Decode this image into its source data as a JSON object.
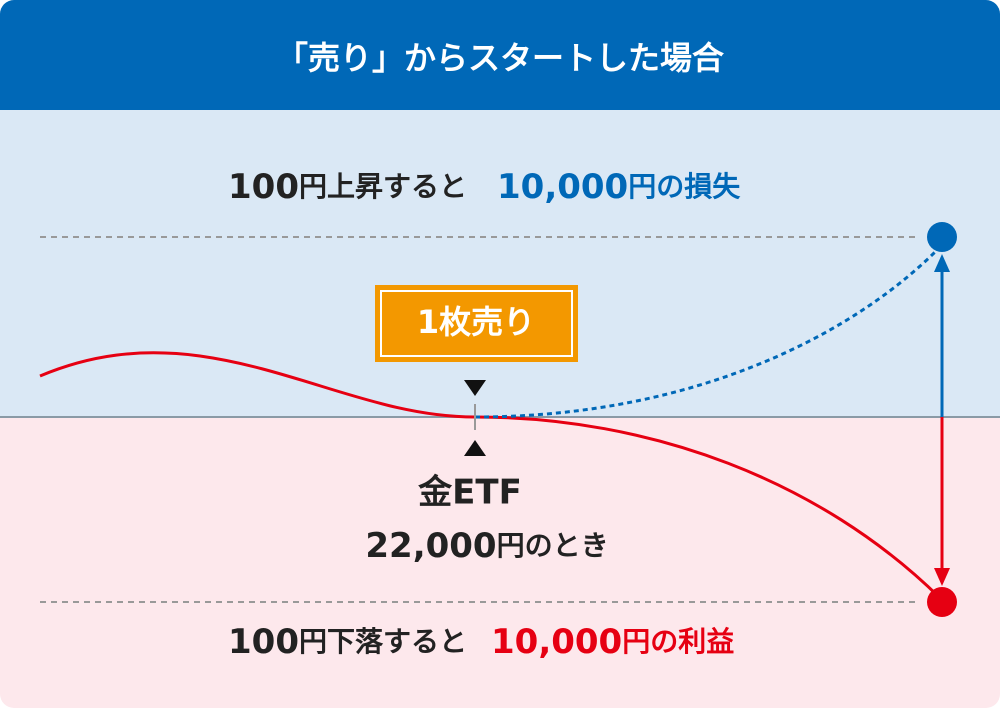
{
  "header": {
    "title": "「売り」からスタートした場合"
  },
  "upper": {
    "amount": "100",
    "condition": "円上昇すると",
    "result_amount": "10,000",
    "result": "円の損失"
  },
  "badge": {
    "label": "1枚売り"
  },
  "center": {
    "asset": "金ETF",
    "price": "22,000",
    "price_suffix": "円のとき"
  },
  "lower": {
    "amount": "100",
    "condition": "円下落すると",
    "result_amount": "10,000",
    "result": "円の利益"
  }
}
